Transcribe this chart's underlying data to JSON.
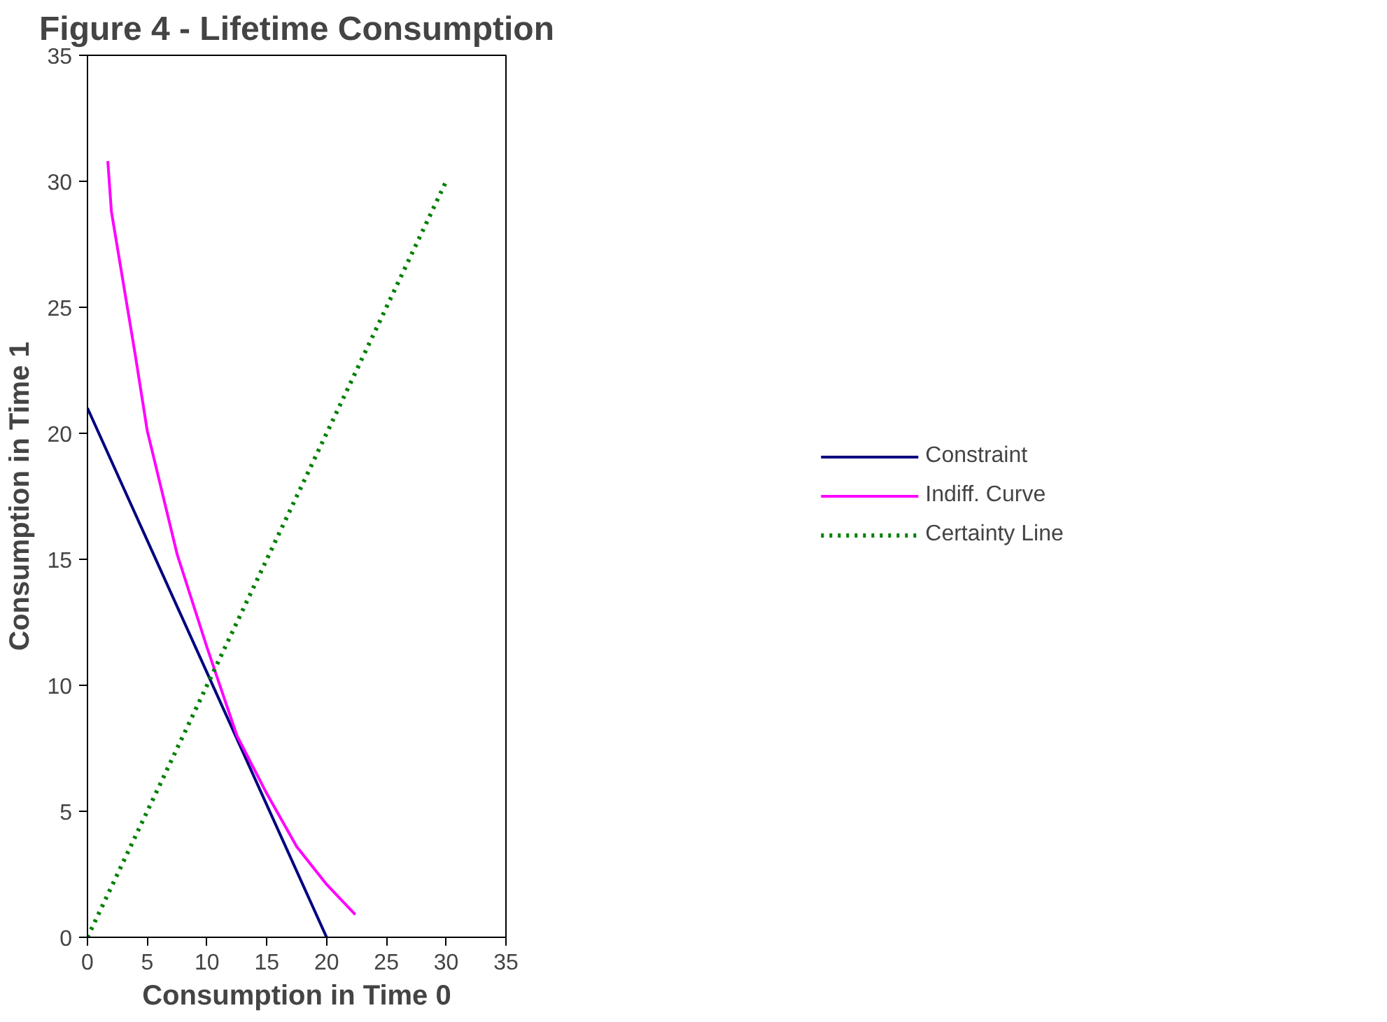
{
  "chart_data": {
    "type": "line",
    "title": "Figure 4 - Lifetime Consumption",
    "xlabel": "Consumption in Time 0",
    "ylabel": "Consumption in Time 1",
    "xlim": [
      0,
      35
    ],
    "ylim": [
      0,
      35
    ],
    "xticks": [
      0,
      5,
      10,
      15,
      20,
      25,
      30,
      35
    ],
    "yticks": [
      0,
      5,
      10,
      15,
      20,
      25,
      30,
      35
    ],
    "grid": false,
    "legend": "right",
    "marker": "none",
    "series": [
      {
        "name": "Constraint",
        "color": "#000080",
        "x": [
          0,
          20
        ],
        "values": [
          21,
          0
        ],
        "line_style": "solid"
      },
      {
        "name": "Indiff. Curve",
        "color": "#ff00ff",
        "x": [
          1.7,
          2,
          4,
          5,
          7.5,
          10,
          12.5,
          15,
          17.5,
          20,
          22.4
        ],
        "values": [
          30.8,
          28.8,
          23.1,
          20.1,
          15.2,
          11.5,
          8,
          5.7,
          3.6,
          2.1,
          0.9
        ],
        "line_style": "solid"
      },
      {
        "name": "Certainty Line",
        "color": "#008000",
        "x": [
          0,
          30
        ],
        "values": [
          0,
          30
        ],
        "line_style": "dotted"
      }
    ]
  }
}
